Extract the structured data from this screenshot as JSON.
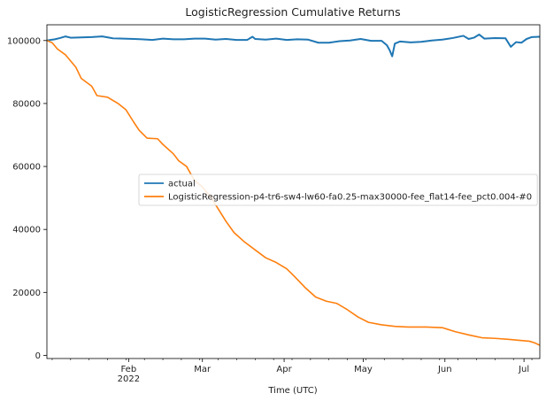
{
  "chart_data": {
    "type": "line",
    "title": "LogisticRegression Cumulative Returns",
    "xlabel": "Time (UTC)",
    "ylabel": "",
    "x_range": [
      "2022-01-01",
      "2022-07-07"
    ],
    "ylim": [
      -1000,
      105000
    ],
    "grid": false,
    "legend_position": "center-right",
    "x_ticks": [
      {
        "date": "2022-02-01",
        "label": "Feb",
        "sublabel": "2022"
      },
      {
        "date": "2022-03-01",
        "label": "Mar",
        "sublabel": ""
      },
      {
        "date": "2022-04-01",
        "label": "Apr",
        "sublabel": ""
      },
      {
        "date": "2022-05-01",
        "label": "May",
        "sublabel": ""
      },
      {
        "date": "2022-06-01",
        "label": "Jun",
        "sublabel": ""
      },
      {
        "date": "2022-07-01",
        "label": "Jul",
        "sublabel": ""
      }
    ],
    "y_ticks": [
      0,
      20000,
      40000,
      60000,
      80000,
      100000
    ],
    "series": [
      {
        "name": "actual",
        "color": "#1f77b4",
        "points": [
          [
            "2022-01-01",
            100000
          ],
          [
            "2022-01-04",
            100400
          ],
          [
            "2022-01-06",
            100800
          ],
          [
            "2022-01-08",
            101300
          ],
          [
            "2022-01-10",
            100900
          ],
          [
            "2022-01-14",
            101000
          ],
          [
            "2022-01-18",
            101100
          ],
          [
            "2022-01-22",
            101300
          ],
          [
            "2022-01-26",
            100700
          ],
          [
            "2022-01-30",
            100600
          ],
          [
            "2022-02-03",
            100500
          ],
          [
            "2022-02-06",
            100400
          ],
          [
            "2022-02-10",
            100200
          ],
          [
            "2022-02-14",
            100600
          ],
          [
            "2022-02-18",
            100400
          ],
          [
            "2022-02-22",
            100400
          ],
          [
            "2022-02-26",
            100600
          ],
          [
            "2022-03-02",
            100600
          ],
          [
            "2022-03-06",
            100300
          ],
          [
            "2022-03-10",
            100500
          ],
          [
            "2022-03-14",
            100200
          ],
          [
            "2022-03-18",
            100200
          ],
          [
            "2022-03-20",
            101200
          ],
          [
            "2022-03-21",
            100500
          ],
          [
            "2022-03-25",
            100300
          ],
          [
            "2022-03-29",
            100600
          ],
          [
            "2022-04-02",
            100200
          ],
          [
            "2022-04-06",
            100400
          ],
          [
            "2022-04-10",
            100300
          ],
          [
            "2022-04-14",
            99300
          ],
          [
            "2022-04-18",
            99300
          ],
          [
            "2022-04-22",
            99800
          ],
          [
            "2022-04-26",
            100000
          ],
          [
            "2022-04-30",
            100500
          ],
          [
            "2022-05-04",
            99900
          ],
          [
            "2022-05-08",
            99900
          ],
          [
            "2022-05-10",
            98500
          ],
          [
            "2022-05-11",
            97000
          ],
          [
            "2022-05-12",
            95000
          ],
          [
            "2022-05-13",
            99000
          ],
          [
            "2022-05-15",
            99700
          ],
          [
            "2022-05-19",
            99400
          ],
          [
            "2022-05-23",
            99600
          ],
          [
            "2022-05-27",
            100000
          ],
          [
            "2022-05-31",
            100300
          ],
          [
            "2022-06-04",
            100800
          ],
          [
            "2022-06-08",
            101500
          ],
          [
            "2022-06-10",
            100500
          ],
          [
            "2022-06-12",
            100900
          ],
          [
            "2022-06-14",
            101900
          ],
          [
            "2022-06-16",
            100600
          ],
          [
            "2022-06-20",
            100800
          ],
          [
            "2022-06-24",
            100700
          ],
          [
            "2022-06-26",
            98000
          ],
          [
            "2022-06-28",
            99500
          ],
          [
            "2022-06-30",
            99300
          ],
          [
            "2022-07-02",
            100500
          ],
          [
            "2022-07-04",
            101100
          ],
          [
            "2022-07-07",
            101200
          ]
        ]
      },
      {
        "name": "LogisticRegression-p4-tr6-sw4-lw60-fa0.25-max30000-fee_flat14-fee_pct0.004-#0",
        "color": "#ff7f0e",
        "points": [
          [
            "2022-01-01",
            100000
          ],
          [
            "2022-01-03",
            99300
          ],
          [
            "2022-01-05",
            97300
          ],
          [
            "2022-01-08",
            95500
          ],
          [
            "2022-01-12",
            91500
          ],
          [
            "2022-01-14",
            88000
          ],
          [
            "2022-01-18",
            85500
          ],
          [
            "2022-01-20",
            82500
          ],
          [
            "2022-01-24",
            82000
          ],
          [
            "2022-01-28",
            80000
          ],
          [
            "2022-01-31",
            78000
          ],
          [
            "2022-02-03",
            74000
          ],
          [
            "2022-02-05",
            71500
          ],
          [
            "2022-02-08",
            69000
          ],
          [
            "2022-02-12",
            68800
          ],
          [
            "2022-02-14",
            67000
          ],
          [
            "2022-02-18",
            64000
          ],
          [
            "2022-02-20",
            61800
          ],
          [
            "2022-02-23",
            60000
          ],
          [
            "2022-02-26",
            55500
          ],
          [
            "2022-03-01",
            53500
          ],
          [
            "2022-03-04",
            50500
          ],
          [
            "2022-03-07",
            46500
          ],
          [
            "2022-03-10",
            42500
          ],
          [
            "2022-03-13",
            39000
          ],
          [
            "2022-03-17",
            36000
          ],
          [
            "2022-03-21",
            33500
          ],
          [
            "2022-03-25",
            31000
          ],
          [
            "2022-03-29",
            29500
          ],
          [
            "2022-04-02",
            27500
          ],
          [
            "2022-04-05",
            25000
          ],
          [
            "2022-04-09",
            21500
          ],
          [
            "2022-04-13",
            18500
          ],
          [
            "2022-04-17",
            17200
          ],
          [
            "2022-04-21",
            16500
          ],
          [
            "2022-04-25",
            14500
          ],
          [
            "2022-04-29",
            12200
          ],
          [
            "2022-05-03",
            10500
          ],
          [
            "2022-05-08",
            9700
          ],
          [
            "2022-05-13",
            9200
          ],
          [
            "2022-05-18",
            9000
          ],
          [
            "2022-05-25",
            9000
          ],
          [
            "2022-05-31",
            8800
          ],
          [
            "2022-06-05",
            7500
          ],
          [
            "2022-06-10",
            6500
          ],
          [
            "2022-06-15",
            5600
          ],
          [
            "2022-06-20",
            5400
          ],
          [
            "2022-06-25",
            5100
          ],
          [
            "2022-06-30",
            4700
          ],
          [
            "2022-07-03",
            4500
          ],
          [
            "2022-07-05",
            4000
          ],
          [
            "2022-07-07",
            3200
          ]
        ]
      }
    ]
  }
}
